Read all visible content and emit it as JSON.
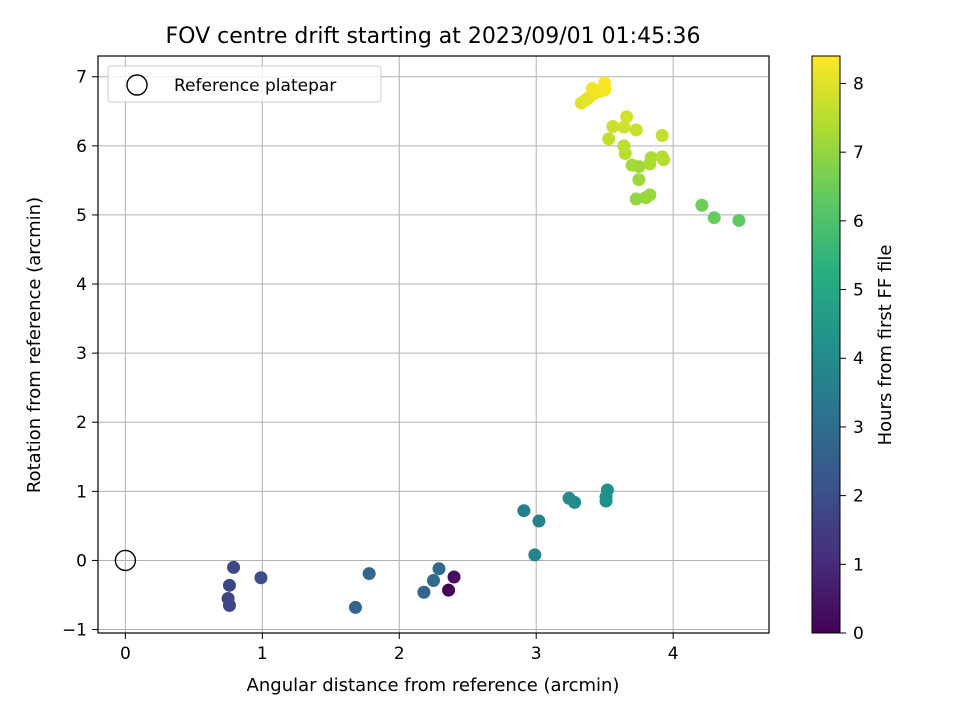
{
  "chart_data": {
    "type": "scatter",
    "title": "FOV centre drift starting at 2023/09/01 01:45:36",
    "xlabel": "Angular distance from reference (arcmin)",
    "ylabel": "Rotation from reference (arcmin)",
    "xlim": [
      -0.2,
      4.7
    ],
    "ylim": [
      -1.05,
      7.3
    ],
    "xticks": [
      0,
      1,
      2,
      3,
      4
    ],
    "yticks": [
      -1,
      0,
      1,
      2,
      3,
      4,
      5,
      6,
      7
    ],
    "grid": true,
    "legend": {
      "placement": "top-left",
      "entries": [
        "Reference platepar"
      ]
    },
    "reference_point": {
      "x": 0,
      "y": 0
    },
    "colorbar": {
      "label": "Hours from first FF file",
      "colormap": "viridis",
      "range": [
        0,
        8.4
      ],
      "ticks": [
        0,
        1,
        2,
        3,
        4,
        5,
        6,
        7,
        8
      ]
    },
    "points": [
      {
        "x": 2.36,
        "y": -0.43,
        "c": 0.05
      },
      {
        "x": 2.4,
        "y": -0.24,
        "c": 0.3
      },
      {
        "x": 0.76,
        "y": -0.65,
        "c": 1.7
      },
      {
        "x": 0.75,
        "y": -0.55,
        "c": 1.75
      },
      {
        "x": 0.76,
        "y": -0.36,
        "c": 1.8
      },
      {
        "x": 0.79,
        "y": -0.1,
        "c": 1.85
      },
      {
        "x": 0.99,
        "y": -0.25,
        "c": 1.95
      },
      {
        "x": 1.68,
        "y": -0.68,
        "c": 2.7
      },
      {
        "x": 1.78,
        "y": -0.19,
        "c": 2.75
      },
      {
        "x": 2.18,
        "y": -0.46,
        "c": 2.8
      },
      {
        "x": 2.25,
        "y": -0.29,
        "c": 2.85
      },
      {
        "x": 2.29,
        "y": -0.12,
        "c": 2.9
      },
      {
        "x": 2.91,
        "y": 0.72,
        "c": 3.6
      },
      {
        "x": 3.02,
        "y": 0.57,
        "c": 3.7
      },
      {
        "x": 2.99,
        "y": 0.08,
        "c": 3.75
      },
      {
        "x": 3.24,
        "y": 0.9,
        "c": 3.95
      },
      {
        "x": 3.28,
        "y": 0.84,
        "c": 4.0
      },
      {
        "x": 3.51,
        "y": 0.86,
        "c": 4.1
      },
      {
        "x": 3.51,
        "y": 0.92,
        "c": 4.15
      },
      {
        "x": 3.52,
        "y": 1.02,
        "c": 4.2
      },
      {
        "x": 4.48,
        "y": 4.92,
        "c": 6.3
      },
      {
        "x": 4.3,
        "y": 4.96,
        "c": 6.4
      },
      {
        "x": 4.21,
        "y": 5.14,
        "c": 6.5
      },
      {
        "x": 3.73,
        "y": 5.23,
        "c": 7.0
      },
      {
        "x": 3.8,
        "y": 5.25,
        "c": 7.05
      },
      {
        "x": 3.83,
        "y": 5.29,
        "c": 7.1
      },
      {
        "x": 3.75,
        "y": 5.51,
        "c": 7.15
      },
      {
        "x": 3.75,
        "y": 5.7,
        "c": 7.2
      },
      {
        "x": 3.7,
        "y": 5.72,
        "c": 7.25
      },
      {
        "x": 3.83,
        "y": 5.74,
        "c": 7.3
      },
      {
        "x": 3.84,
        "y": 5.83,
        "c": 7.35
      },
      {
        "x": 3.93,
        "y": 5.8,
        "c": 7.4
      },
      {
        "x": 3.92,
        "y": 5.84,
        "c": 7.45
      },
      {
        "x": 3.65,
        "y": 5.89,
        "c": 7.5
      },
      {
        "x": 3.64,
        "y": 6.0,
        "c": 7.55
      },
      {
        "x": 3.53,
        "y": 6.1,
        "c": 7.6
      },
      {
        "x": 3.92,
        "y": 6.15,
        "c": 7.65
      },
      {
        "x": 3.73,
        "y": 6.23,
        "c": 7.7
      },
      {
        "x": 3.56,
        "y": 6.28,
        "c": 7.75
      },
      {
        "x": 3.64,
        "y": 6.27,
        "c": 7.8
      },
      {
        "x": 3.66,
        "y": 6.42,
        "c": 7.85
      },
      {
        "x": 3.33,
        "y": 6.62,
        "c": 8.0
      },
      {
        "x": 3.36,
        "y": 6.66,
        "c": 8.05
      },
      {
        "x": 3.38,
        "y": 6.69,
        "c": 8.1
      },
      {
        "x": 3.42,
        "y": 6.75,
        "c": 8.15
      },
      {
        "x": 3.47,
        "y": 6.79,
        "c": 8.2
      },
      {
        "x": 3.41,
        "y": 6.83,
        "c": 8.25
      },
      {
        "x": 3.5,
        "y": 6.81,
        "c": 8.3
      },
      {
        "x": 3.5,
        "y": 6.91,
        "c": 8.35
      }
    ]
  }
}
